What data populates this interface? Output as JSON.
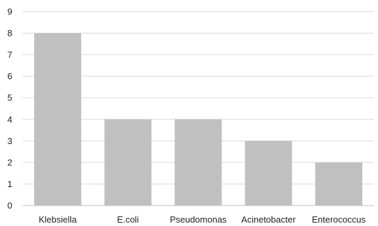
{
  "chart_data": {
    "type": "bar",
    "categories": [
      "Klebsiella",
      "E.coli",
      "Pseudomonas",
      "Acinetobacter",
      "Enterococcus"
    ],
    "values": [
      8,
      4,
      4,
      3,
      2
    ],
    "title": "",
    "xlabel": "",
    "ylabel": "",
    "ylim": [
      0,
      9
    ],
    "yticks": [
      0,
      1,
      2,
      3,
      4,
      5,
      6,
      7,
      8,
      9
    ],
    "grid": true,
    "legend": "none",
    "bar_color": "#c0c0c0"
  }
}
